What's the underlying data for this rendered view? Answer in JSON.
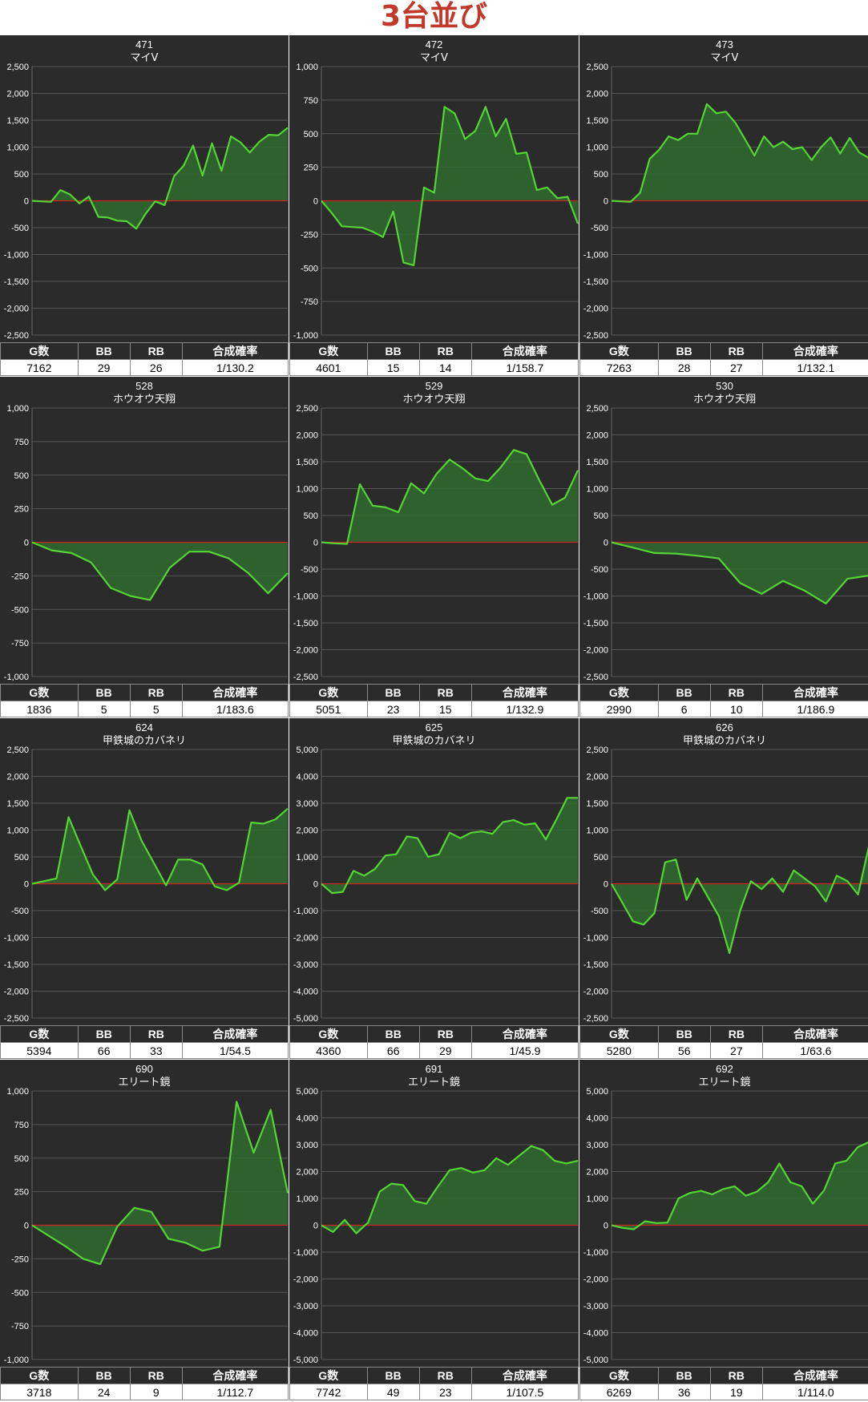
{
  "page": {
    "title": "3台並び"
  },
  "table_headers": {
    "games": "G数",
    "bb": "BB",
    "rb": "RB",
    "rate": "合成確率"
  },
  "colors": {
    "background": "#2b2b2b",
    "line": "#55d435",
    "fill": "#2f6b2f",
    "zero_line": "#cc2222",
    "title": "#c0392b"
  },
  "chart_data": [
    {
      "type": "area",
      "title": "471",
      "subtitle": "マイV",
      "y_ticks": [
        2500,
        2000,
        1500,
        1000,
        500,
        0,
        -500,
        -1000,
        -1500,
        -2000,
        -2500
      ],
      "ylim": [
        -2500,
        2500
      ],
      "values": [
        0,
        -10,
        -20,
        200,
        120,
        -50,
        80,
        -300,
        -310,
        -370,
        -380,
        -520,
        -240,
        -10,
        -80,
        460,
        650,
        1030,
        470,
        1070,
        560,
        1200,
        1090,
        900,
        1100,
        1230,
        1220,
        1360
      ],
      "stats": {
        "games": "7162",
        "bb": "29",
        "rb": "26",
        "rate": "1/130.2"
      }
    },
    {
      "type": "area",
      "title": "472",
      "subtitle": "マイV",
      "y_ticks": [
        1000,
        750,
        500,
        250,
        0,
        -250,
        -500,
        -750,
        -1000
      ],
      "ylim": [
        -1000,
        1000
      ],
      "values": [
        0,
        -90,
        -190,
        -195,
        -200,
        -230,
        -270,
        -80,
        -460,
        -480,
        100,
        60,
        700,
        650,
        460,
        520,
        700,
        480,
        610,
        350,
        360,
        80,
        100,
        20,
        30,
        -170
      ],
      "stats": {
        "games": "4601",
        "bb": "15",
        "rb": "14",
        "rate": "1/158.7"
      }
    },
    {
      "type": "area",
      "title": "473",
      "subtitle": "マイV",
      "y_ticks": [
        2500,
        2000,
        1500,
        1000,
        500,
        0,
        -500,
        -1000,
        -1500,
        -2000,
        -2500
      ],
      "ylim": [
        -2500,
        2500
      ],
      "values": [
        0,
        -10,
        -20,
        150,
        780,
        950,
        1200,
        1130,
        1250,
        1250,
        1800,
        1630,
        1660,
        1450,
        1150,
        840,
        1200,
        1000,
        1100,
        960,
        1000,
        760,
        1000,
        1180,
        880,
        1170,
        900,
        800
      ],
      "stats": {
        "games": "7263",
        "bb": "28",
        "rb": "27",
        "rate": "1/132.1"
      }
    },
    {
      "type": "area",
      "title": "528",
      "subtitle": "ホウオウ天翔",
      "y_ticks": [
        1000,
        750,
        500,
        250,
        0,
        -250,
        -500,
        -750,
        -1000
      ],
      "ylim": [
        -1000,
        1000
      ],
      "values": [
        0,
        -60,
        -80,
        -150,
        -340,
        -400,
        -430,
        -190,
        -70,
        -70,
        -120,
        -230,
        -380,
        -230
      ],
      "stats": {
        "games": "1836",
        "bb": "5",
        "rb": "5",
        "rate": "1/183.6"
      }
    },
    {
      "type": "area",
      "title": "529",
      "subtitle": "ホウオウ天翔",
      "y_ticks": [
        2500,
        2000,
        1500,
        1000,
        500,
        0,
        -500,
        -1000,
        -1500,
        -2000,
        -2500
      ],
      "ylim": [
        -2500,
        2500
      ],
      "values": [
        0,
        -20,
        -30,
        1080,
        680,
        650,
        560,
        1100,
        910,
        1280,
        1540,
        1380,
        1190,
        1140,
        1400,
        1720,
        1640,
        1150,
        700,
        830,
        1340
      ],
      "stats": {
        "games": "5051",
        "bb": "23",
        "rb": "15",
        "rate": "1/132.9"
      }
    },
    {
      "type": "area",
      "title": "530",
      "subtitle": "ホウオウ天翔",
      "y_ticks": [
        2500,
        2000,
        1500,
        1000,
        500,
        0,
        -500,
        -1000,
        -1500,
        -2000,
        -2500
      ],
      "ylim": [
        -2500,
        2500
      ],
      "values": [
        0,
        -100,
        -200,
        -210,
        -250,
        -300,
        -760,
        -960,
        -720,
        -900,
        -1140,
        -680,
        -620
      ],
      "stats": {
        "games": "2990",
        "bb": "6",
        "rb": "10",
        "rate": "1/186.9"
      }
    },
    {
      "type": "area",
      "title": "624",
      "subtitle": "甲鉄城のカバネリ",
      "y_ticks": [
        2500,
        2000,
        1500,
        1000,
        500,
        0,
        -500,
        -1000,
        -1500,
        -2000,
        -2500
      ],
      "ylim": [
        -2500,
        2500
      ],
      "values": [
        0,
        50,
        100,
        1240,
        700,
        170,
        -120,
        80,
        1370,
        800,
        390,
        -30,
        450,
        450,
        360,
        -50,
        -120,
        20,
        1140,
        1120,
        1200,
        1400
      ],
      "stats": {
        "games": "5394",
        "bb": "66",
        "rb": "33",
        "rate": "1/54.5"
      }
    },
    {
      "type": "area",
      "title": "625",
      "subtitle": "甲鉄城のカバネリ",
      "y_ticks": [
        5000,
        4000,
        3000,
        2000,
        1000,
        0,
        -1000,
        -2000,
        -3000,
        -4000,
        -5000
      ],
      "ylim": [
        -5000,
        5000
      ],
      "values": [
        0,
        -350,
        -300,
        480,
        300,
        550,
        1050,
        1100,
        1760,
        1700,
        1000,
        1100,
        1900,
        1700,
        1900,
        1950,
        1860,
        2300,
        2370,
        2200,
        2250,
        1650,
        2400,
        3200,
        3200
      ],
      "stats": {
        "games": "4360",
        "bb": "66",
        "rb": "29",
        "rate": "1/45.9"
      }
    },
    {
      "type": "area",
      "title": "626",
      "subtitle": "甲鉄城のカバネリ",
      "y_ticks": [
        2500,
        2000,
        1500,
        1000,
        500,
        0,
        -500,
        -1000,
        -1500,
        -2000,
        -2500
      ],
      "ylim": [
        -2500,
        2500
      ],
      "values": [
        0,
        -350,
        -700,
        -760,
        -550,
        400,
        450,
        -300,
        100,
        -250,
        -600,
        -1290,
        -500,
        50,
        -100,
        100,
        -150,
        250,
        100,
        -50,
        -330,
        150,
        50,
        -200,
        690
      ],
      "stats": {
        "games": "5280",
        "bb": "56",
        "rb": "27",
        "rate": "1/63.6"
      }
    },
    {
      "type": "area",
      "title": "690",
      "subtitle": "エリート鏡",
      "y_ticks": [
        1000,
        750,
        500,
        250,
        0,
        -250,
        -500,
        -750,
        -1000
      ],
      "ylim": [
        -1000,
        1000
      ],
      "values": [
        0,
        -80,
        -160,
        -250,
        -290,
        -10,
        130,
        100,
        -100,
        -130,
        -190,
        -160,
        920,
        540,
        860,
        240
      ],
      "stats": {
        "games": "3718",
        "bb": "24",
        "rb": "9",
        "rate": "1/112.7"
      }
    },
    {
      "type": "area",
      "title": "691",
      "subtitle": "エリート鏡",
      "y_ticks": [
        5000,
        4000,
        3000,
        2000,
        1000,
        0,
        -1000,
        -2000,
        -3000,
        -4000,
        -5000
      ],
      "ylim": [
        -5000,
        5000
      ],
      "values": [
        0,
        -250,
        200,
        -300,
        100,
        1250,
        1550,
        1500,
        900,
        800,
        1450,
        2050,
        2130,
        1960,
        2050,
        2500,
        2250,
        2600,
        2950,
        2800,
        2400,
        2300,
        2400
      ],
      "stats": {
        "games": "7742",
        "bb": "49",
        "rb": "23",
        "rate": "1/107.5"
      }
    },
    {
      "type": "area",
      "title": "692",
      "subtitle": "エリート鏡",
      "y_ticks": [
        5000,
        4000,
        3000,
        2000,
        1000,
        0,
        -1000,
        -2000,
        -3000,
        -4000,
        -5000
      ],
      "ylim": [
        -5000,
        5000
      ],
      "values": [
        0,
        -100,
        -150,
        150,
        80,
        100,
        1000,
        1200,
        1280,
        1150,
        1350,
        1450,
        1100,
        1250,
        1600,
        2300,
        1600,
        1450,
        800,
        1300,
        2300,
        2400,
        2900,
        3100
      ],
      "stats": {
        "games": "6269",
        "bb": "36",
        "rb": "19",
        "rate": "1/114.0"
      }
    }
  ]
}
